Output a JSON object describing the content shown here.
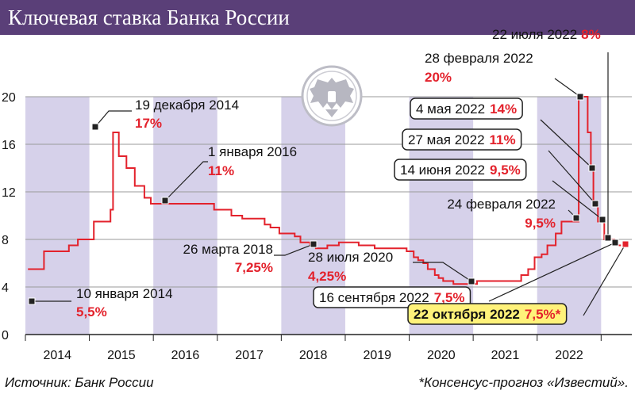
{
  "header": {
    "title": "Ключевая ставка Банка России"
  },
  "footer": {
    "source": "Источник: Банк России",
    "footnote": "*Консенсус-прогноз «Известий»."
  },
  "colors": {
    "header_bg": "#5a3f78",
    "band": "#d6d1ea",
    "line": "#e3222c",
    "value_text": "#e3222c",
    "forecast_box": "#fff27a"
  },
  "emblem": {
    "icon": "double-headed-eagle-icon"
  },
  "chart_data": {
    "type": "line",
    "step": true,
    "title": "Ключевая ставка Банка России",
    "xlabel": "",
    "ylabel": "",
    "ylim": [
      0,
      20
    ],
    "xlim": [
      2013.5,
      2022.98
    ],
    "yticks": [
      0,
      4,
      8,
      12,
      16,
      20
    ],
    "xticks": [
      "2014",
      "2015",
      "2016",
      "2017",
      "2018",
      "2019",
      "2020",
      "2021",
      "2022"
    ],
    "grid": true,
    "series": [
      {
        "x": [
          2013.54,
          2013.79,
          2014.18,
          2014.32,
          2014.57,
          2014.83,
          2014.87,
          2014.96,
          2015.08,
          2015.21,
          2015.36,
          2015.46,
          2015.58,
          2015.61,
          2016.45,
          2016.72,
          2016.89,
          2017.24,
          2017.33,
          2017.47,
          2017.71,
          2017.8,
          2017.95,
          2018.04,
          2018.11,
          2018.22,
          2018.4,
          2018.62,
          2018.71,
          2018.96,
          2019.46,
          2019.57,
          2019.64,
          2019.72,
          2019.79,
          2019.9,
          2019.96,
          2020.03,
          2020.19,
          2020.44,
          2020.56,
          2021.25,
          2021.36,
          2021.46,
          2021.57,
          2021.66,
          2021.79,
          2021.88,
          2021.97,
          2022.15,
          2022.16,
          2022.29,
          2022.34,
          2022.38,
          2022.45,
          2022.55,
          2022.71,
          2022.81
        ],
        "y": [
          5.5,
          7.0,
          7.5,
          8.0,
          9.5,
          10.5,
          17,
          15,
          14,
          12.5,
          11.5,
          11.0,
          11.0,
          11,
          10.5,
          10.0,
          9.75,
          9.25,
          9.0,
          8.5,
          8.25,
          7.75,
          7.5,
          7.25,
          7.25,
          7.5,
          7.75,
          7.75,
          7.5,
          7.25,
          7.0,
          6.5,
          6.25,
          6.0,
          5.5,
          5.0,
          4.75,
          4.5,
          4.25,
          4.25,
          4.5,
          5.0,
          5.5,
          6.5,
          6.75,
          7.5,
          8.5,
          9.5,
          9.5,
          20,
          20,
          17,
          14,
          11,
          9.5,
          8,
          7.5,
          7.5
        ]
      }
    ],
    "shaded_years": [
      "2014",
      "2016",
      "2018",
      "2020",
      "2022"
    ],
    "annotations": [
      {
        "date": "10 января 2014",
        "value": "5,5%"
      },
      {
        "date": "19 декабря 2014",
        "value": "17%"
      },
      {
        "date": "1 января 2016",
        "value": "11%"
      },
      {
        "date": "26 марта 2018",
        "value": "7,25%"
      },
      {
        "date": "28 июля 2020",
        "value": "4,25%"
      },
      {
        "date": "16 сентября 2022",
        "value": "7,5%"
      },
      {
        "date": "22 октября 2022",
        "value": "7,5%*"
      },
      {
        "date": "24 февраля 2022",
        "value": "9,5%"
      },
      {
        "date": "14 июня 2022",
        "value": "9,5%"
      },
      {
        "date": "27 мая 2022",
        "value": "11%"
      },
      {
        "date": "4 мая 2022",
        "value": "14%"
      },
      {
        "date": "28 февраля 2022",
        "value": "20%"
      },
      {
        "date": "22 июля 2022",
        "value": "8%"
      }
    ]
  }
}
